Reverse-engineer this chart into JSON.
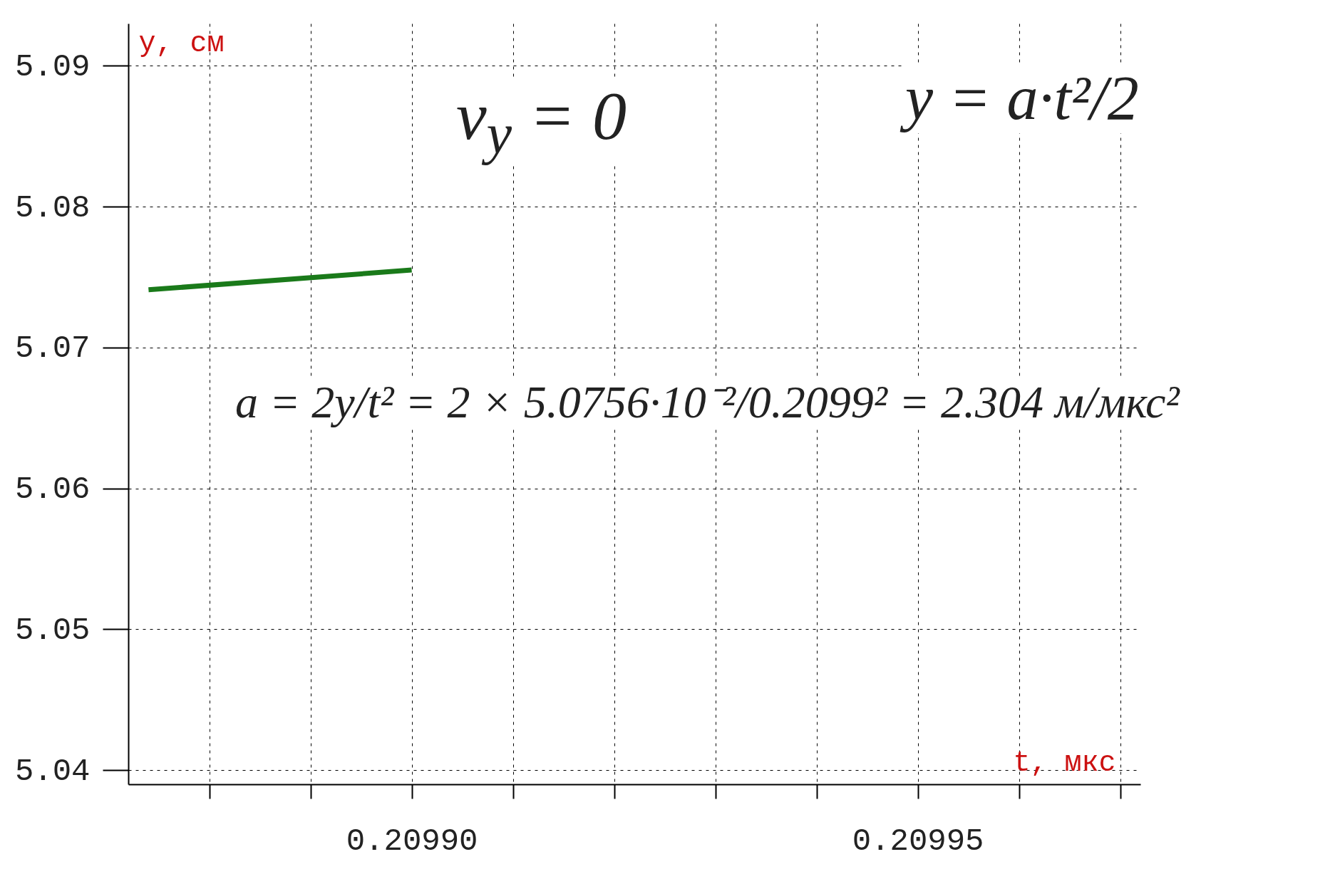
{
  "chart_data": {
    "type": "line",
    "xlabel": "t, мкс",
    "ylabel": "y, см",
    "x": [
      0.209874,
      0.2099
    ],
    "series": [
      {
        "color": "#1a7a1a",
        "values": [
          5.0741,
          5.0755
        ]
      }
    ],
    "xlim": [
      0.209872,
      0.209972
    ],
    "xticks": [
      {
        "value": 0.20988,
        "label": null
      },
      {
        "value": 0.20989,
        "label": null
      },
      {
        "value": 0.2099,
        "label": "0.20990"
      },
      {
        "value": 0.20991,
        "label": null
      },
      {
        "value": 0.20992,
        "label": null
      },
      {
        "value": 0.20993,
        "label": null
      },
      {
        "value": 0.20994,
        "label": null
      },
      {
        "value": 0.20995,
        "label": "0.20995"
      },
      {
        "value": 0.20996,
        "label": null
      },
      {
        "value": 0.20997,
        "label": null
      }
    ],
    "ylim": [
      5.039,
      5.093
    ],
    "yticks": [
      5.04,
      5.05,
      5.06,
      5.07,
      5.08,
      5.09
    ],
    "grid": true,
    "annotations": [
      "v$_{y}$ = 0",
      "y = a·t²/2",
      "a = 2y/t² = 2 × 5.0756·10⁻²/0.2099² = 2.304 м/мкс²"
    ]
  }
}
